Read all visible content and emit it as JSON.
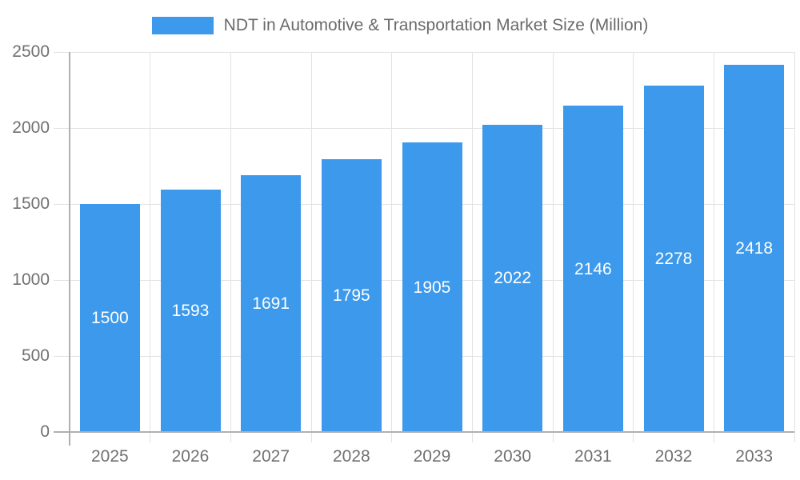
{
  "legend": {
    "label": "NDT in Automotive & Transportation Market Size (Million)"
  },
  "chart_data": {
    "type": "bar",
    "title": "NDT in Automotive & Transportation Market Size (Million)",
    "categories": [
      "2025",
      "2026",
      "2027",
      "2028",
      "2029",
      "2030",
      "2031",
      "2032",
      "2033"
    ],
    "values": [
      1500,
      1593,
      1691,
      1795,
      1905,
      2022,
      2146,
      2278,
      2418
    ],
    "xlabel": "",
    "ylabel": "",
    "ylim": [
      0,
      2500
    ],
    "yticks": [
      0,
      500,
      1000,
      1500,
      2000,
      2500
    ],
    "grid": true,
    "legend_position": "top",
    "value_labels": "inside-center"
  },
  "colors": {
    "bar": "#3C99EC",
    "grid": "#e2e2e2",
    "axis": "#b0b0b0",
    "tick_text": "#707070",
    "legend_text": "#6a6a6a",
    "value_label": "#ffffff",
    "background": "#ffffff"
  }
}
